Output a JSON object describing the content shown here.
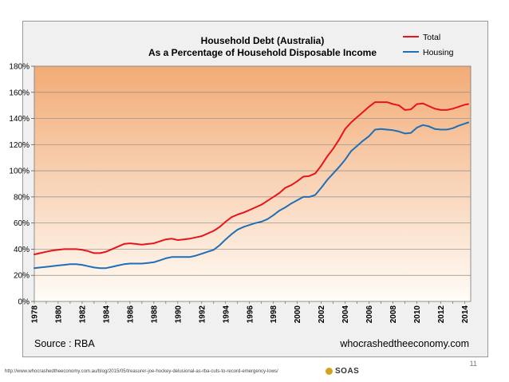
{
  "chart_data": {
    "type": "line",
    "title": "Household Debt (Australia)",
    "subtitle": "As a Percentage of Household Disposable Income",
    "xlabel": "",
    "ylabel": "",
    "xlim": [
      1978,
      2014.5
    ],
    "ylim": [
      0,
      180
    ],
    "y_ticks": [
      0,
      20,
      40,
      60,
      80,
      100,
      120,
      140,
      160,
      180
    ],
    "y_tick_labels": [
      "0%",
      "20%",
      "40%",
      "60%",
      "80%",
      "100%",
      "120%",
      "140%",
      "160%",
      "180%"
    ],
    "x_tick_labels": [
      "1978",
      "1980",
      "1982",
      "1984",
      "1986",
      "1988",
      "1990",
      "1992",
      "1994",
      "1996",
      "1998",
      "2000",
      "2002",
      "2004",
      "2006",
      "2008",
      "2010",
      "2012",
      "2014"
    ],
    "grid": true,
    "legend_position": "top-right",
    "series": [
      {
        "name": "Total",
        "color": "#e8141b",
        "x": [
          1978,
          1978.5,
          1979,
          1979.5,
          1980,
          1980.5,
          1981,
          1981.5,
          1982,
          1982.5,
          1983,
          1983.5,
          1984,
          1984.5,
          1985,
          1985.5,
          1986,
          1986.5,
          1987,
          1987.5,
          1988,
          1988.5,
          1989,
          1989.5,
          1990,
          1990.5,
          1991,
          1991.5,
          1992,
          1992.5,
          1993,
          1993.5,
          1994,
          1994.5,
          1995,
          1995.5,
          1996,
          1996.5,
          1997,
          1997.5,
          1998,
          1998.5,
          1999,
          1999.5,
          2000,
          2000.5,
          2001,
          2001.5,
          2002,
          2002.5,
          2003,
          2003.5,
          2004,
          2004.5,
          2005,
          2005.5,
          2006,
          2006.5,
          2007,
          2007.5,
          2008,
          2008.5,
          2009,
          2009.5,
          2010,
          2010.5,
          2011,
          2011.5,
          2012,
          2012.5,
          2013,
          2013.5,
          2014,
          2014.3
        ],
        "values": [
          36,
          37,
          38,
          39,
          39.5,
          40,
          40,
          40,
          39.5,
          38.5,
          37,
          37,
          38,
          40,
          42,
          44,
          44.5,
          44,
          43.5,
          44,
          44.5,
          46,
          47.5,
          48,
          47,
          47.5,
          48,
          49,
          50,
          52,
          54,
          57,
          61,
          64.5,
          66.5,
          68,
          70,
          72,
          74,
          77,
          80,
          83,
          87,
          89,
          92,
          95.5,
          96,
          98,
          104,
          111,
          117,
          124,
          132,
          137,
          141,
          145,
          149,
          152.5,
          152.5,
          152.5,
          151,
          150,
          146.5,
          147,
          151,
          151.5,
          149.5,
          147.5,
          146.5,
          146.5,
          147.5,
          149,
          150.5,
          151
        ]
      },
      {
        "name": "Housing",
        "color": "#1f6fb8",
        "x": [
          1978,
          1978.5,
          1979,
          1979.5,
          1980,
          1980.5,
          1981,
          1981.5,
          1982,
          1982.5,
          1983,
          1983.5,
          1984,
          1984.5,
          1985,
          1985.5,
          1986,
          1986.5,
          1987,
          1987.5,
          1988,
          1988.5,
          1989,
          1989.5,
          1990,
          1990.5,
          1991,
          1991.5,
          1992,
          1992.5,
          1993,
          1993.5,
          1994,
          1994.5,
          1995,
          1995.5,
          1996,
          1996.5,
          1997,
          1997.5,
          1998,
          1998.5,
          1999,
          1999.5,
          2000,
          2000.5,
          2001,
          2001.5,
          2002,
          2002.5,
          2003,
          2003.5,
          2004,
          2004.5,
          2005,
          2005.5,
          2006,
          2006.5,
          2007,
          2007.5,
          2008,
          2008.5,
          2009,
          2009.5,
          2010,
          2010.5,
          2011,
          2011.5,
          2012,
          2012.5,
          2013,
          2013.5,
          2014,
          2014.3
        ],
        "values": [
          25.5,
          26,
          26.5,
          27,
          27.5,
          28,
          28.5,
          28.5,
          28,
          27,
          26,
          25.5,
          25.5,
          26.5,
          27.5,
          28.5,
          29,
          29,
          29,
          29.5,
          30,
          31.5,
          33,
          34,
          34,
          34,
          34,
          35,
          36.5,
          38,
          39.5,
          43,
          47.5,
          51.5,
          55,
          57,
          58.5,
          60,
          61,
          63,
          66,
          69.5,
          72,
          75,
          77.5,
          80,
          80,
          81.5,
          87,
          93,
          98,
          103,
          108.5,
          115,
          119,
          123,
          126.5,
          131.5,
          132,
          131.5,
          131,
          130,
          128.5,
          129,
          133,
          135,
          134,
          132,
          131.5,
          131.5,
          132.5,
          134.5,
          136,
          137
        ]
      }
    ]
  },
  "footer": {
    "source": "Source : RBA",
    "site": "whocrashedtheeconomy.com"
  },
  "slide": {
    "url": "http://www.whocrashedtheeconomy.com.au/blog/2015/05/treasurer-joe-hockey-delusional-as-rba-cuts-to-record-emergency-lows/",
    "page_number": "11",
    "logo_text": "SOAS"
  }
}
